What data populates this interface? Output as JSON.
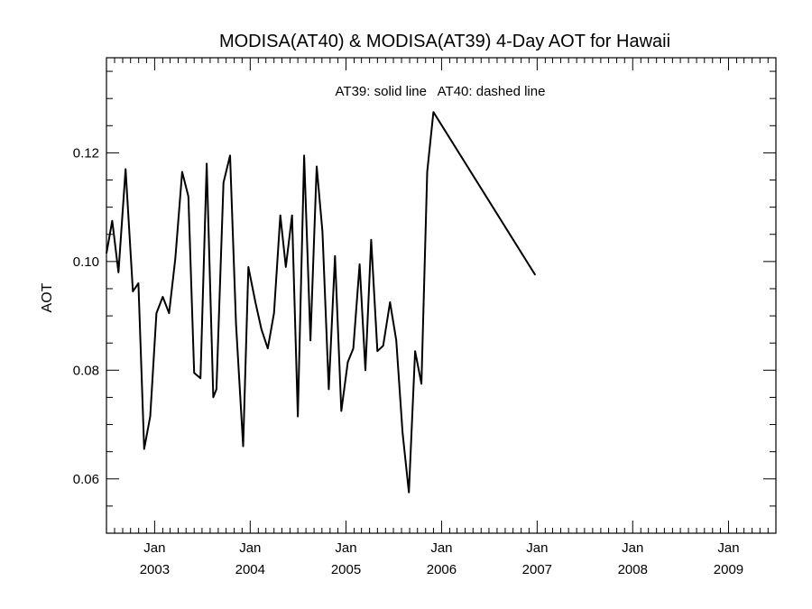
{
  "chart_data": {
    "type": "line",
    "title": "MODISA(AT40) & MODISA(AT39) 4-Day AOT for Hawaii",
    "annotation": "AT39: solid line   AT40: dashed line",
    "ylabel": "AOT",
    "xlabel": "",
    "ylim": [
      0.05,
      0.1375
    ],
    "xlim": [
      "2002-07-01",
      "2009-07-01"
    ],
    "y_ticks": [
      {
        "value": 0.06,
        "label": "0.06"
      },
      {
        "value": 0.08,
        "label": "0.08"
      },
      {
        "value": 0.1,
        "label": "0.10"
      },
      {
        "value": 0.12,
        "label": "0.12"
      }
    ],
    "x_ticks": [
      {
        "date": "2003-01-01",
        "month": "Jan",
        "year": "2003"
      },
      {
        "date": "2004-01-01",
        "month": "Jan",
        "year": "2004"
      },
      {
        "date": "2005-01-01",
        "month": "Jan",
        "year": "2005"
      },
      {
        "date": "2006-01-01",
        "month": "Jan",
        "year": "2006"
      },
      {
        "date": "2007-01-01",
        "month": "Jan",
        "year": "2007"
      },
      {
        "date": "2008-01-01",
        "month": "Jan",
        "year": "2008"
      },
      {
        "date": "2009-01-01",
        "month": "Jan",
        "year": "2009"
      }
    ],
    "grid": false,
    "series": [
      {
        "name": "AT39",
        "style": "solid",
        "color": "#000000",
        "points": [
          [
            "2002-07-01",
            0.1015
          ],
          [
            "2002-07-23",
            0.1075
          ],
          [
            "2002-08-16",
            0.098
          ],
          [
            "2002-09-12",
            0.117
          ],
          [
            "2002-10-10",
            0.0945
          ],
          [
            "2002-10-31",
            0.096
          ],
          [
            "2002-11-22",
            0.0655
          ],
          [
            "2002-12-15",
            0.0715
          ],
          [
            "2003-01-08",
            0.0905
          ],
          [
            "2003-02-01",
            0.0935
          ],
          [
            "2003-02-25",
            0.0905
          ],
          [
            "2003-03-21",
            0.1005
          ],
          [
            "2003-04-16",
            0.1165
          ],
          [
            "2003-05-10",
            0.112
          ],
          [
            "2003-06-01",
            0.0795
          ],
          [
            "2003-06-25",
            0.0785
          ],
          [
            "2003-07-19",
            0.118
          ],
          [
            "2003-08-13",
            0.075
          ],
          [
            "2003-08-25",
            0.0765
          ],
          [
            "2003-09-21",
            0.1145
          ],
          [
            "2003-10-16",
            0.1195
          ],
          [
            "2003-11-08",
            0.0885
          ],
          [
            "2003-12-05",
            0.066
          ],
          [
            "2003-12-25",
            0.099
          ],
          [
            "2004-01-21",
            0.0925
          ],
          [
            "2004-02-13",
            0.0875
          ],
          [
            "2004-03-08",
            0.084
          ],
          [
            "2004-04-01",
            0.0905
          ],
          [
            "2004-04-25",
            0.1085
          ],
          [
            "2004-05-16",
            0.099
          ],
          [
            "2004-06-09",
            0.1085
          ],
          [
            "2004-07-01",
            0.0715
          ],
          [
            "2004-07-25",
            0.1195
          ],
          [
            "2004-08-18",
            0.0855
          ],
          [
            "2004-09-11",
            0.1175
          ],
          [
            "2004-10-03",
            0.1055
          ],
          [
            "2004-10-27",
            0.0765
          ],
          [
            "2004-11-20",
            0.101
          ],
          [
            "2004-12-14",
            0.0725
          ],
          [
            "2005-01-08",
            0.0815
          ],
          [
            "2005-01-29",
            0.084
          ],
          [
            "2005-02-22",
            0.0995
          ],
          [
            "2005-03-16",
            0.08
          ],
          [
            "2005-04-07",
            0.104
          ],
          [
            "2005-05-01",
            0.0835
          ],
          [
            "2005-05-23",
            0.0845
          ],
          [
            "2005-06-18",
            0.0925
          ],
          [
            "2005-07-12",
            0.0855
          ],
          [
            "2005-08-05",
            0.0685
          ],
          [
            "2005-08-29",
            0.0575
          ],
          [
            "2005-09-22",
            0.0835
          ],
          [
            "2005-10-16",
            0.0775
          ],
          [
            "2005-11-07",
            0.1165
          ],
          [
            "2005-12-01",
            0.1275
          ],
          [
            "2006-12-25",
            0.0975
          ]
        ]
      },
      {
        "name": "AT40",
        "style": "dashed",
        "color": "#000000",
        "points": []
      }
    ]
  }
}
